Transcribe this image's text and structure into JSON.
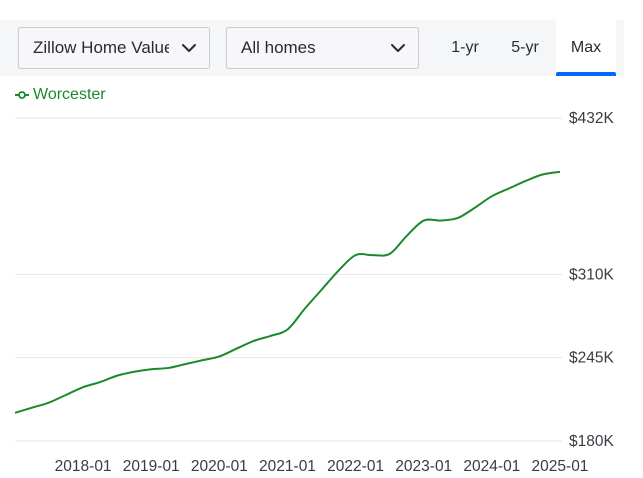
{
  "controls": {
    "metric_select": {
      "value": "Zillow Home Value Index",
      "icon": "chevron-down-icon"
    },
    "type_select": {
      "value": "All homes",
      "icon": "chevron-down-icon"
    },
    "tabs": [
      {
        "label": "1-yr",
        "active": false
      },
      {
        "label": "5-yr",
        "active": false
      },
      {
        "label": "Max",
        "active": true
      }
    ],
    "accent_color": "#006aff"
  },
  "chart_data": {
    "type": "line",
    "title": "",
    "xlabel": "",
    "ylabel": "",
    "x_tick_labels": [
      "2018-01",
      "2019-01",
      "2020-01",
      "2021-01",
      "2022-01",
      "2023-01",
      "2024-01",
      "2025-01"
    ],
    "y_tick_labels": [
      "$180K",
      "$245K",
      "$310K",
      "$432K"
    ],
    "y_ticks": [
      180000,
      245000,
      310000,
      432000
    ],
    "ylim": [
      180000,
      432000
    ],
    "xlim": [
      "2017-01",
      "2025-01"
    ],
    "grid": true,
    "legend_position": "top-left",
    "series": [
      {
        "name": "Worcester",
        "color": "#1a8a2a",
        "x": [
          "2017-01",
          "2017-04",
          "2017-07",
          "2017-10",
          "2018-01",
          "2018-04",
          "2018-07",
          "2018-10",
          "2019-01",
          "2019-04",
          "2019-07",
          "2019-10",
          "2020-01",
          "2020-04",
          "2020-07",
          "2020-10",
          "2021-01",
          "2021-04",
          "2021-07",
          "2021-10",
          "2022-01",
          "2022-04",
          "2022-07",
          "2022-10",
          "2023-01",
          "2023-04",
          "2023-07",
          "2023-10",
          "2024-01",
          "2024-04",
          "2024-07",
          "2024-10",
          "2025-01"
        ],
        "values": [
          202000,
          206000,
          210000,
          216000,
          222000,
          226000,
          231000,
          234000,
          236000,
          237000,
          240000,
          243000,
          246000,
          252000,
          258000,
          262000,
          267000,
          283000,
          298000,
          313000,
          325000,
          325000,
          326000,
          340000,
          352000,
          352000,
          354000,
          362000,
          371000,
          377000,
          383000,
          388000,
          390000
        ]
      }
    ]
  }
}
